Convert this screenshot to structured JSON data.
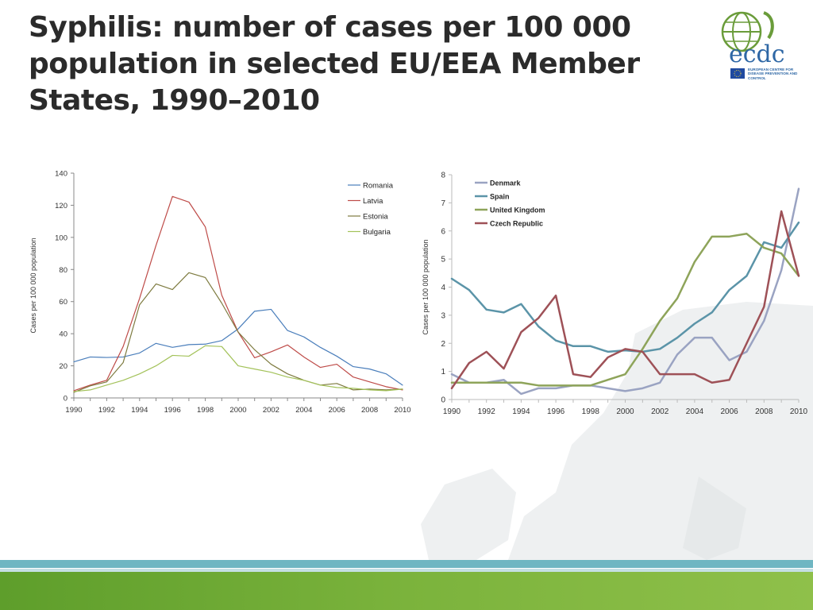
{
  "slide": {
    "title": "Syphilis: number of cases per 100 000 population in selected EU/EEA Member States, 1990–2010"
  },
  "logo": {
    "wordmark": "ecdc",
    "subtitle": "EUROPEAN CENTRE FOR DISEASE PREVENTION AND CONTROL",
    "icon": "globe-icon"
  },
  "colors": {
    "footer_teal": "#6fb6c2",
    "footer_green": "#7bb33c"
  },
  "chart_data": [
    {
      "type": "line",
      "title": "",
      "xlabel": "",
      "ylabel": "Cases per 100 000 population",
      "ylim": [
        0,
        140
      ],
      "yticks": [
        0,
        20,
        40,
        60,
        80,
        100,
        120,
        140
      ],
      "xlim": [
        1990,
        2010
      ],
      "xticks": [
        1990,
        1992,
        1994,
        1996,
        1998,
        2000,
        2002,
        2004,
        2006,
        2008,
        2010
      ],
      "legend_position": "top-right",
      "grid": false,
      "x": [
        1990,
        1991,
        1992,
        1993,
        1994,
        1995,
        1996,
        1997,
        1998,
        1999,
        2000,
        2001,
        2002,
        2003,
        2004,
        2005,
        2006,
        2007,
        2008,
        2009,
        2010
      ],
      "series": [
        {
          "name": "Romania",
          "color": "#4a7ebb",
          "values": [
            22.5,
            25.5,
            25.2,
            25.5,
            28,
            34,
            31.5,
            33.2,
            33.5,
            35.7,
            43,
            54,
            55.2,
            42,
            38,
            31.5,
            26,
            19.5,
            18,
            15,
            8
          ]
        },
        {
          "name": "Latvia",
          "color": "#be4b48",
          "values": [
            4.5,
            8,
            11,
            32,
            62,
            95,
            125.5,
            122,
            106.5,
            64,
            41,
            25,
            28.7,
            33,
            25.5,
            19,
            21,
            13,
            10,
            7,
            5
          ]
        },
        {
          "name": "Estonia",
          "color": "#7e7b40",
          "values": [
            3.5,
            7.5,
            10,
            22,
            58,
            71,
            67.5,
            78,
            75,
            59,
            41,
            30,
            21,
            15,
            11,
            8,
            9,
            5,
            5.5,
            5,
            5.5
          ]
        },
        {
          "name": "Bulgaria",
          "color": "#a3c25a",
          "values": [
            4,
            5,
            8,
            11,
            15,
            20,
            26.5,
            26,
            32.5,
            32,
            20,
            18,
            16,
            13,
            11,
            8,
            6.5,
            6,
            5,
            4.5,
            5.5
          ]
        }
      ]
    },
    {
      "type": "line",
      "title": "",
      "xlabel": "",
      "ylabel": "Cases per 100 000 population",
      "ylim": [
        0,
        8
      ],
      "yticks": [
        0,
        1,
        2,
        3,
        4,
        5,
        6,
        7,
        8
      ],
      "xlim": [
        1990,
        2010
      ],
      "xticks": [
        1990,
        1992,
        1994,
        1996,
        1998,
        2000,
        2002,
        2004,
        2006,
        2008,
        2010
      ],
      "legend_position": "top-left",
      "grid": false,
      "x": [
        1990,
        1991,
        1992,
        1993,
        1994,
        1995,
        1996,
        1997,
        1998,
        1999,
        2000,
        2001,
        2002,
        2003,
        2004,
        2005,
        2006,
        2007,
        2008,
        2009,
        2010
      ],
      "series": [
        {
          "name": "Denmark",
          "color": "#9aa3c2",
          "values": [
            0.9,
            0.6,
            0.6,
            0.7,
            0.2,
            0.4,
            0.4,
            0.5,
            0.5,
            0.4,
            0.3,
            0.4,
            0.6,
            1.6,
            2.2,
            2.2,
            1.4,
            1.7,
            2.8,
            4.6,
            7.5
          ]
        },
        {
          "name": "Spain",
          "color": "#5b94a8",
          "values": [
            4.3,
            3.9,
            3.2,
            3.1,
            3.4,
            2.6,
            2.1,
            1.9,
            1.9,
            1.7,
            1.75,
            1.7,
            1.8,
            2.2,
            2.7,
            3.1,
            3.9,
            4.4,
            5.6,
            5.4,
            6.3
          ]
        },
        {
          "name": "United Kingdom",
          "color": "#8ea45a",
          "values": [
            0.6,
            0.6,
            0.6,
            0.6,
            0.6,
            0.5,
            0.5,
            0.5,
            0.5,
            0.7,
            0.9,
            1.8,
            2.8,
            3.6,
            4.9,
            5.8,
            5.8,
            5.9,
            5.4,
            5.2,
            4.4
          ]
        },
        {
          "name": "Czech Republic",
          "color": "#9e5157",
          "values": [
            0.4,
            1.3,
            1.7,
            1.1,
            2.4,
            2.9,
            3.7,
            0.9,
            0.8,
            1.5,
            1.8,
            1.7,
            0.9,
            0.9,
            0.9,
            0.6,
            0.7,
            2.0,
            3.3,
            6.7,
            4.4
          ]
        }
      ]
    }
  ]
}
